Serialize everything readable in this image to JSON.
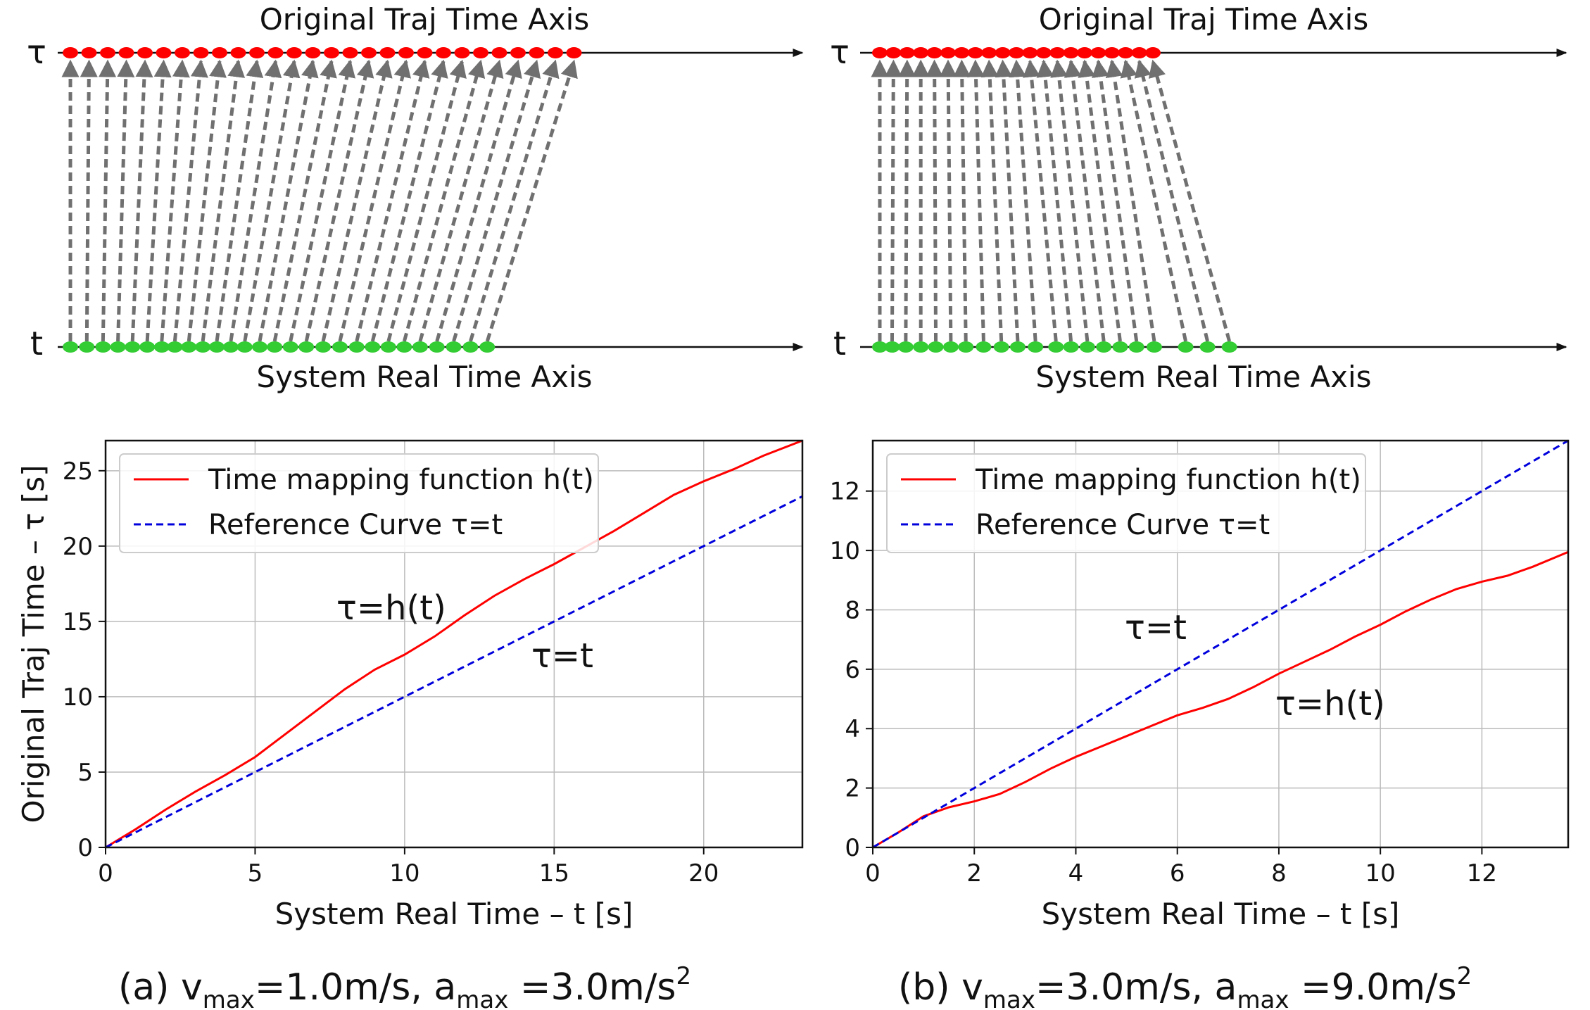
{
  "chart_data": [
    {
      "type": "diagram",
      "panel": "a-top",
      "title": "Original Traj Time Axis",
      "xlabel": "System Real Time Axis",
      "top_axis_symbol": "τ",
      "bottom_axis_symbol": "t",
      "tau_points": [
        0,
        1,
        2,
        3,
        4,
        5,
        6,
        7,
        8,
        9,
        10,
        11,
        12,
        13,
        14,
        15,
        16,
        17,
        18,
        19,
        20,
        21,
        22,
        23,
        24,
        25,
        26,
        27
      ],
      "t_points": [
        0,
        0.88,
        1.75,
        2.55,
        3.33,
        4.12,
        4.9,
        5.6,
        6.35,
        7.1,
        7.85,
        8.6,
        9.35,
        10.15,
        10.95,
        11.8,
        12.65,
        13.55,
        14.45,
        15.35,
        16.2,
        17.05,
        17.9,
        18.75,
        19.65,
        20.55,
        21.45,
        22.35
      ],
      "colors": {
        "top_points": "#ff0000",
        "bottom_points": "#33cc33",
        "connectors": "#707070"
      }
    },
    {
      "type": "diagram",
      "panel": "b-top",
      "title": "Original Traj Time Axis",
      "xlabel": "System Real Time Axis",
      "top_axis_symbol": "τ",
      "bottom_axis_symbol": "t",
      "tau_points": [
        0,
        0.5,
        1,
        1.5,
        2,
        2.5,
        3,
        3.5,
        4,
        4.5,
        5,
        5.5,
        6,
        6.5,
        7,
        7.5,
        8,
        8.5,
        9,
        9.5,
        10
      ],
      "t_points": [
        0,
        0.45,
        0.95,
        1.5,
        2.05,
        2.6,
        3.15,
        3.8,
        4.45,
        5.05,
        5.7,
        6.45,
        7.0,
        7.6,
        8.2,
        8.8,
        9.4,
        10.05,
        11.2,
        12.0,
        12.8
      ],
      "colors": {
        "top_points": "#ff0000",
        "bottom_points": "#33cc33",
        "connectors": "#707070"
      }
    },
    {
      "type": "line",
      "panel": "a",
      "xlabel": "System Real Time – t [s]",
      "ylabel": "Original Traj Time – τ [s]",
      "xlim": [
        0,
        23.3
      ],
      "ylim": [
        0,
        27
      ],
      "xticks": [
        0,
        5,
        10,
        15,
        20
      ],
      "yticks": [
        0,
        5,
        10,
        15,
        20,
        25
      ],
      "grid": true,
      "legend_position": "top-left",
      "series": [
        {
          "name": "Time mapping function h(t)",
          "color": "#ff0000",
          "style": "solid",
          "x": [
            0,
            1,
            2,
            3,
            4,
            5,
            6,
            7,
            8,
            9,
            10,
            11,
            12,
            13,
            14,
            15,
            16,
            17,
            18,
            19,
            20,
            21,
            22,
            23.3
          ],
          "y": [
            0,
            1.2,
            2.5,
            3.7,
            4.8,
            6.0,
            7.5,
            9.0,
            10.5,
            11.8,
            12.8,
            14.0,
            15.4,
            16.7,
            17.8,
            18.8,
            19.9,
            21.0,
            22.2,
            23.4,
            24.3,
            25.1,
            26.0,
            27
          ]
        },
        {
          "name": "Reference Curve τ=t",
          "color": "#0000dd",
          "style": "dashed",
          "x": [
            0,
            23.3
          ],
          "y": [
            0,
            23.3
          ]
        }
      ],
      "annotations": [
        "τ=h(t)",
        "τ=t"
      ],
      "caption": {
        "prefix": "(a) v",
        "vsub": "max",
        "mid": "=1.0m/s, a",
        "asub": "max",
        "end": " =3.0m/s",
        "sup": "2"
      }
    },
    {
      "type": "line",
      "panel": "b",
      "xlabel": "System Real Time – t [s]",
      "ylabel": "",
      "xlim": [
        0,
        13.7
      ],
      "ylim": [
        0,
        13.7
      ],
      "xticks": [
        0,
        2,
        4,
        6,
        8,
        10,
        12
      ],
      "yticks": [
        0,
        2,
        4,
        6,
        8,
        10,
        12
      ],
      "grid": true,
      "legend_position": "top-left",
      "series": [
        {
          "name": "Time mapping function h(t)",
          "color": "#ff0000",
          "style": "solid",
          "x": [
            0,
            0.5,
            1,
            1.5,
            2,
            2.5,
            3,
            3.5,
            4,
            4.5,
            5,
            5.5,
            6,
            6.5,
            7,
            7.5,
            8,
            8.5,
            9,
            9.5,
            10,
            10.5,
            11,
            11.5,
            12,
            12.5,
            13,
            13.7
          ],
          "y": [
            0,
            0.5,
            1.05,
            1.35,
            1.55,
            1.8,
            2.2,
            2.65,
            3.05,
            3.4,
            3.75,
            4.1,
            4.45,
            4.7,
            5.0,
            5.4,
            5.85,
            6.25,
            6.65,
            7.1,
            7.5,
            7.95,
            8.35,
            8.7,
            8.95,
            9.15,
            9.45,
            9.95
          ]
        },
        {
          "name": "Reference Curve τ=t",
          "color": "#0000dd",
          "style": "dashed",
          "x": [
            0,
            13.7
          ],
          "y": [
            0,
            13.7
          ]
        }
      ],
      "annotations": [
        "τ=t",
        "τ=h(t)"
      ],
      "caption": {
        "prefix": "(b) v",
        "vsub": "max",
        "mid": "=3.0m/s, a",
        "asub": "max",
        "end": " =9.0m/s",
        "sup": "2"
      }
    }
  ]
}
